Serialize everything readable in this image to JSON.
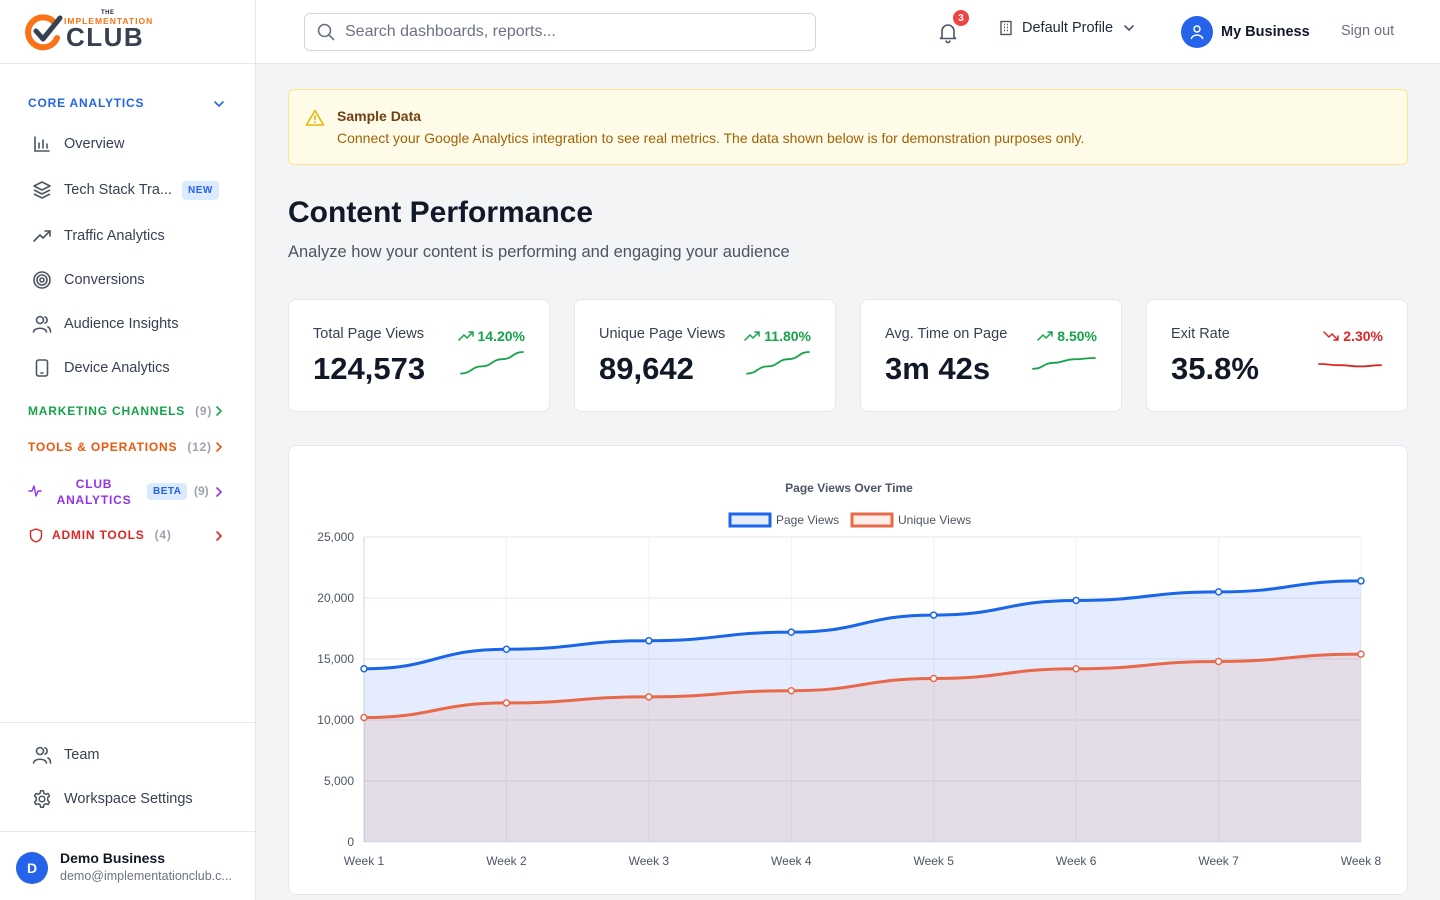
{
  "brand": {
    "the": "THE",
    "name_top": "IMPLEMENTATION",
    "name_main": "CLUB"
  },
  "sidebar": {
    "core": {
      "label": "CORE ANALYTICS"
    },
    "items": [
      {
        "label": "Overview",
        "icon": "bar-chart-icon"
      },
      {
        "label": "Tech Stack Tra...",
        "icon": "layers-icon",
        "badge": "NEW"
      },
      {
        "label": "Traffic Analytics",
        "icon": "trending-up-icon"
      },
      {
        "label": "Conversions",
        "icon": "target-icon"
      },
      {
        "label": "Audience Insights",
        "icon": "users-icon"
      },
      {
        "label": "Device Analytics",
        "icon": "smartphone-icon"
      }
    ],
    "marketing": {
      "label": "MARKETING CHANNELS",
      "count": "(9)",
      "color": "#16a34a"
    },
    "tools": {
      "label": "TOOLS & OPERATIONS",
      "count": "(12)",
      "color": "#ea580c"
    },
    "club": {
      "label_line1": "CLUB",
      "label_line2": "ANALYTICS",
      "badge": "BETA",
      "count": "(9)",
      "color": "#9333ea"
    },
    "admin": {
      "label": "ADMIN TOOLS",
      "count": "(4)",
      "color": "#dc2626"
    },
    "bottom": [
      {
        "label": "Team",
        "icon": "users-icon"
      },
      {
        "label": "Workspace Settings",
        "icon": "gear-icon"
      }
    ],
    "user": {
      "initial": "D",
      "name": "Demo Business",
      "email": "demo@implementationclub.c..."
    }
  },
  "header": {
    "search_placeholder": "Search dashboards, reports...",
    "notifications_count": "3",
    "profile": "Default Profile",
    "business": "My Business",
    "signout": "Sign out"
  },
  "alert": {
    "title": "Sample Data",
    "text": "Connect your Google Analytics integration to see real metrics. The data shown below is for demonstration purposes only."
  },
  "page": {
    "title": "Content Performance",
    "subtitle": "Analyze how your content is performing and engaging your audience"
  },
  "metrics": [
    {
      "label": "Total Page Views",
      "value": "124,573",
      "change": "14.20%",
      "trend": "up",
      "color": "#16a34a",
      "spark": [
        0.1,
        0.4,
        0.7,
        1.0
      ]
    },
    {
      "label": "Unique Page Views",
      "value": "89,642",
      "change": "11.80%",
      "trend": "up",
      "color": "#16a34a",
      "spark": [
        0.1,
        0.4,
        0.7,
        1.0
      ]
    },
    {
      "label": "Avg. Time on Page",
      "value": "3m 42s",
      "change": "8.50%",
      "trend": "up",
      "color": "#16a34a",
      "spark": [
        0.3,
        0.55,
        0.7,
        0.75
      ]
    },
    {
      "label": "Exit Rate",
      "value": "35.8%",
      "change": "2.30%",
      "trend": "down",
      "color": "#dc2626",
      "spark": [
        0.5,
        0.45,
        0.4,
        0.45
      ]
    }
  ],
  "chart_data": {
    "type": "area",
    "title": "Page Views Over Time",
    "categories": [
      "Week 1",
      "Week 2",
      "Week 3",
      "Week 4",
      "Week 5",
      "Week 6",
      "Week 7",
      "Week 8"
    ],
    "series": [
      {
        "name": "Page Views",
        "values": [
          14200,
          15800,
          16500,
          17200,
          18600,
          19800,
          20500,
          21400
        ],
        "color": "#1a66e8",
        "fill": "rgba(37,99,235,0.12)"
      },
      {
        "name": "Unique Views",
        "values": [
          10200,
          11400,
          11900,
          12400,
          13400,
          14200,
          14800,
          15400
        ],
        "color": "#e8694a",
        "fill": "rgba(232,105,74,0.12)"
      }
    ],
    "ylim": [
      0,
      25000
    ],
    "yticks": [
      "0",
      "5,000",
      "10,000",
      "15,000",
      "20,000",
      "25,000"
    ],
    "grid": true,
    "legend": "top-center"
  }
}
